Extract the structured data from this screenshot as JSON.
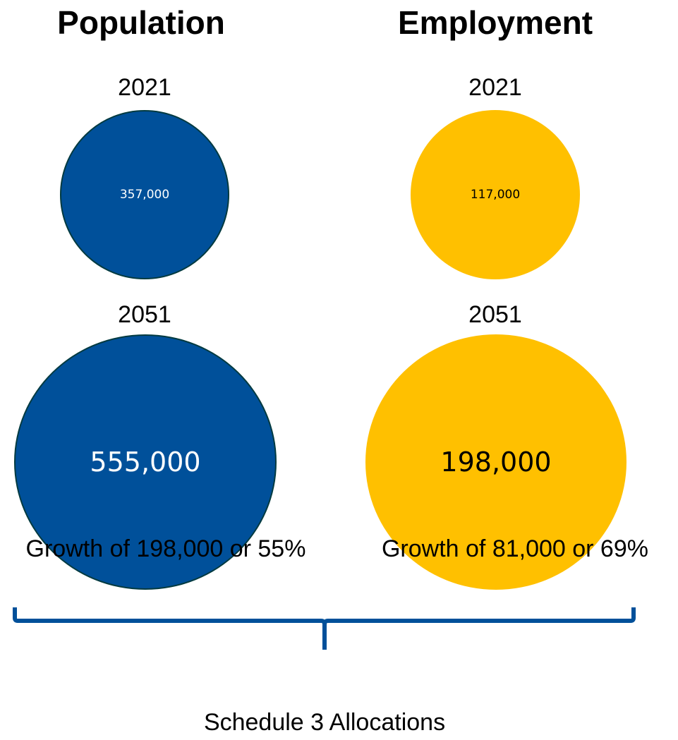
{
  "colors": {
    "population": "#00509A",
    "population_border": "#003A40",
    "employment": "#FFC000",
    "brace": "#00509A"
  },
  "chart_data": {
    "type": "bubble",
    "groups": [
      {
        "title": "Population",
        "color": "#00509A",
        "label_color": "#ffffff",
        "points": [
          {
            "year": "2021",
            "value": 357000,
            "label": "357,000"
          },
          {
            "year": "2051",
            "value": 555000,
            "label": "555,000"
          }
        ],
        "growth_text": "Growth of 198,000 or 55%"
      },
      {
        "title": "Employment",
        "color": "#FFC000",
        "label_color": "#000000",
        "points": [
          {
            "year": "2021",
            "value": 117000,
            "label": "117,000"
          },
          {
            "year": "2051",
            "value": 198000,
            "label": "198,000"
          }
        ],
        "growth_text": "Growth of 81,000 or 69%"
      }
    ],
    "footer": "Schedule 3 Allocations"
  }
}
